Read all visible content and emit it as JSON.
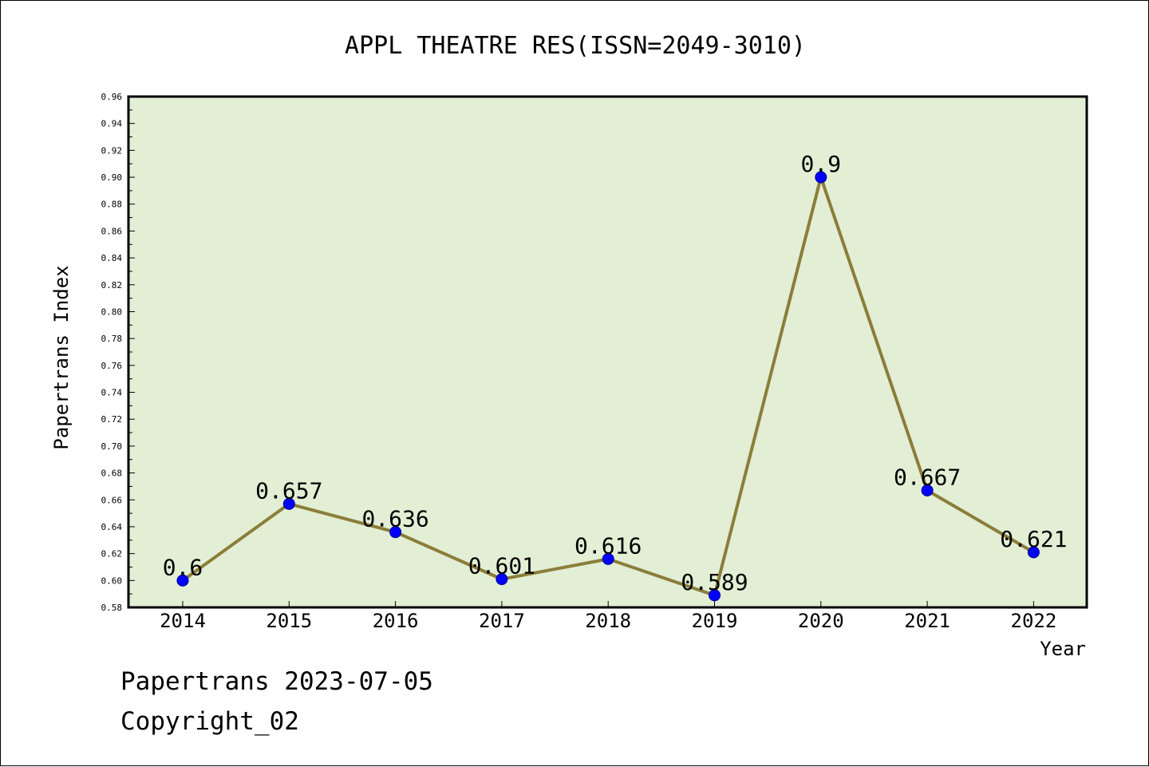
{
  "chart_data": {
    "type": "line",
    "title": "APPL THEATRE RES(ISSN=2049-3010)",
    "xlabel": "Year",
    "ylabel": "Papertrans Index",
    "categories": [
      "2014",
      "2015",
      "2016",
      "2017",
      "2018",
      "2019",
      "2020",
      "2021",
      "2022"
    ],
    "series": [
      {
        "values": [
          0.6,
          0.657,
          0.636,
          0.601,
          0.616,
          0.589,
          0.9,
          0.667,
          0.621
        ],
        "labels": [
          "0.6",
          "0.657",
          "0.636",
          "0.601",
          "0.616",
          "0.589",
          "0.9",
          "0.667",
          "0.621"
        ]
      }
    ],
    "ylim": [
      0.58,
      0.96
    ],
    "yticks": [
      "0.58",
      "0.60",
      "0.62",
      "0.64",
      "0.66",
      "0.68",
      "0.70",
      "0.72",
      "0.74",
      "0.76",
      "0.78",
      "0.80",
      "0.82",
      "0.84",
      "0.86",
      "0.88",
      "0.90",
      "0.92",
      "0.94",
      "0.96"
    ],
    "grid": false,
    "colors": {
      "plot_background": "#e2efd5",
      "line": "#8b7d3a",
      "marker": "#0000ff"
    }
  },
  "footer": {
    "date_line": "Papertrans 2023-07-05",
    "copyright_line": "Copyright_02"
  }
}
